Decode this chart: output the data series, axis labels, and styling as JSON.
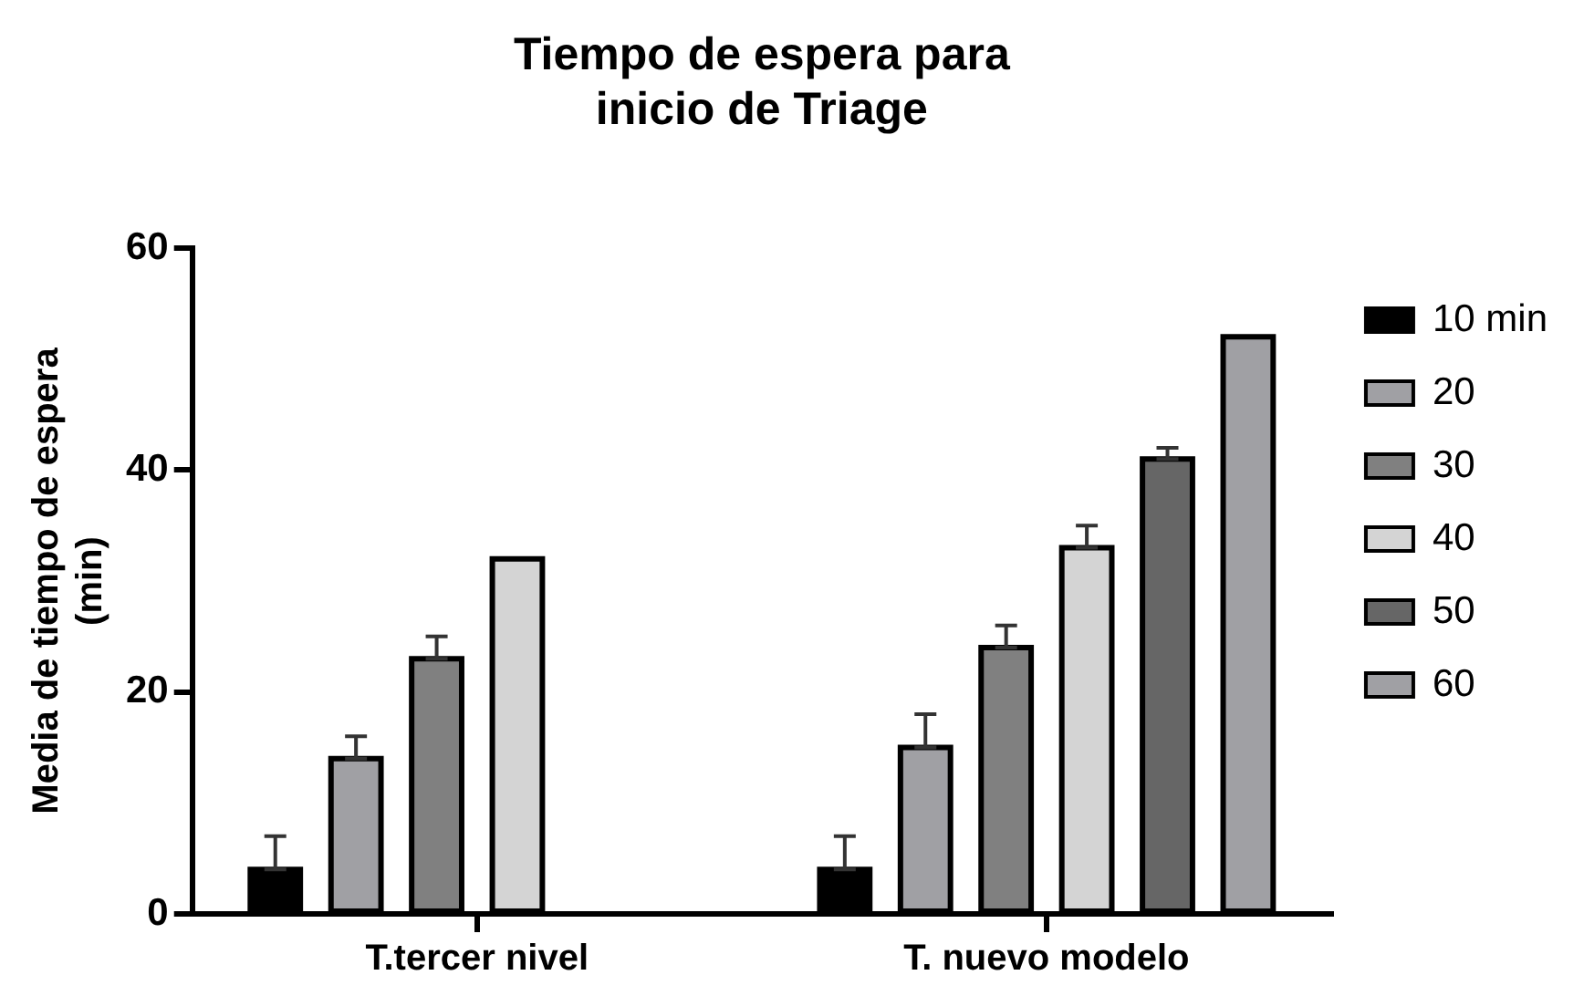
{
  "chart_data": {
    "type": "bar",
    "title": "Tiempo de espera para\ninicio de Triage",
    "ylabel": "Media de tiempo de espera\n(min)",
    "categories": [
      "T.tercer nivel",
      "T. nuevo modelo"
    ],
    "series": [
      {
        "name": "10 min",
        "color": "#000000",
        "values": [
          4,
          4
        ],
        "errors": [
          [
            4,
            7
          ],
          [
            4,
            7
          ]
        ]
      },
      {
        "name": "20",
        "color": "#a0a0a4",
        "values": [
          14,
          15
        ],
        "errors": [
          [
            14,
            16
          ],
          [
            15,
            18
          ]
        ]
      },
      {
        "name": "30",
        "color": "#808080",
        "values": [
          23,
          24
        ],
        "errors": [
          [
            23,
            25
          ],
          [
            24,
            26
          ]
        ]
      },
      {
        "name": "40",
        "color": "#d4d4d4",
        "values": [
          32,
          33
        ],
        "errors": [
          null,
          [
            33,
            35
          ]
        ]
      },
      {
        "name": "50",
        "color": "#666666",
        "values": [
          null,
          41
        ],
        "errors": [
          null,
          [
            41,
            42
          ]
        ]
      },
      {
        "name": "60",
        "color": "#a0a0a4",
        "values": [
          null,
          52
        ],
        "errors": [
          null,
          null
        ]
      }
    ],
    "ylim": [
      0,
      60
    ],
    "yticks": [
      0,
      20,
      40,
      60
    ],
    "grid": false,
    "legend": "right"
  }
}
